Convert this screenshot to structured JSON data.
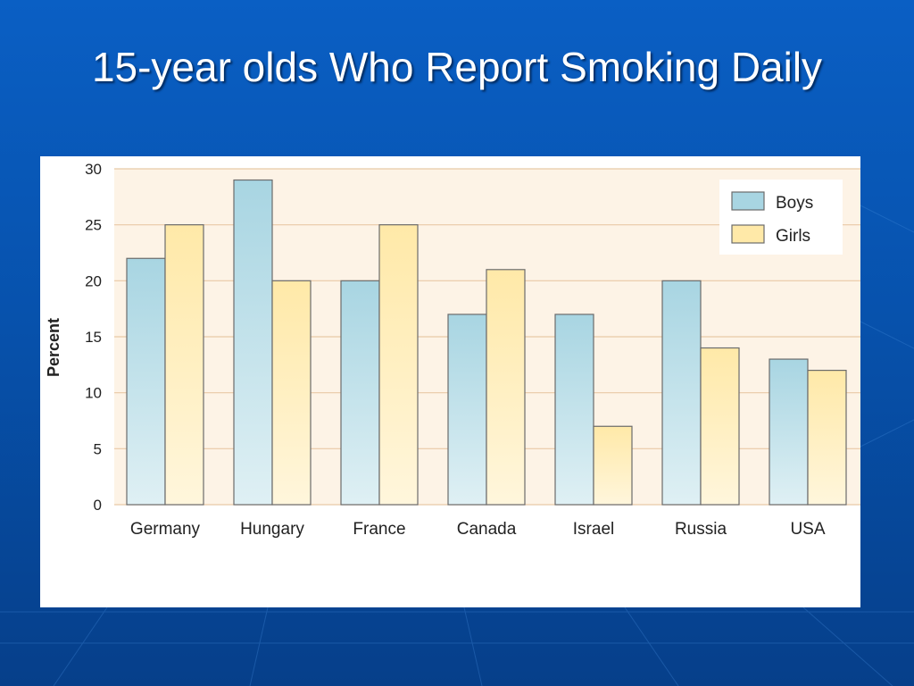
{
  "slide": {
    "title": "15-year olds Who Report Smoking Daily"
  },
  "colors": {
    "boys": "#a8d5e2",
    "girls": "#ffe9a8",
    "plot_bg": "#fdf3e6",
    "grid": "#e8c9a6"
  },
  "chart_data": {
    "type": "bar",
    "title": "",
    "xlabel": "",
    "ylabel": "Percent",
    "ylim": [
      0,
      30
    ],
    "yticks": [
      0,
      5,
      10,
      15,
      20,
      25,
      30
    ],
    "categories": [
      "Germany",
      "Hungary",
      "France",
      "Canada",
      "Israel",
      "Russia",
      "USA"
    ],
    "series": [
      {
        "name": "Boys",
        "values": [
          22,
          29,
          20,
          17,
          17,
          20,
          13
        ]
      },
      {
        "name": "Girls",
        "values": [
          25,
          20,
          25,
          21,
          7,
          14,
          12
        ]
      }
    ],
    "grid": true,
    "legend": "top-right"
  }
}
